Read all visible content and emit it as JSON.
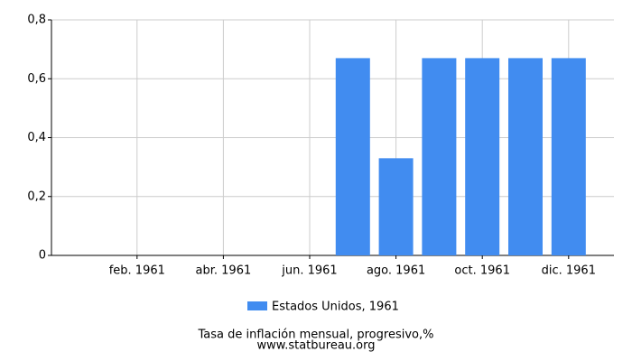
{
  "chart_data": {
    "type": "bar",
    "title": "Tasa de inflación mensual, progresivo,%",
    "subtitle": "www.statbureau.org",
    "categories": [
      null,
      "feb. 1961",
      null,
      "abr. 1961",
      null,
      "jun. 1961",
      null,
      "ago. 1961",
      null,
      "oct. 1961",
      null,
      "dic. 1961"
    ],
    "series": [
      {
        "name": "Estados Unidos, 1961",
        "color": "#418cf0",
        "values": [
          0,
          0,
          0,
          0,
          0,
          0,
          0.67,
          0.33,
          0.67,
          0.67,
          0.67,
          0.67
        ]
      }
    ],
    "ylim": [
      0,
      0.8
    ],
    "yticks": [
      0,
      {
        "value": 0.2,
        "label": "0,2"
      },
      {
        "value": 0.4,
        "label": "0,4"
      },
      {
        "value": 0.6,
        "label": "0,6"
      },
      {
        "value": 0.8,
        "label": "0,8"
      }
    ],
    "grid": true,
    "legend": "bottom"
  }
}
